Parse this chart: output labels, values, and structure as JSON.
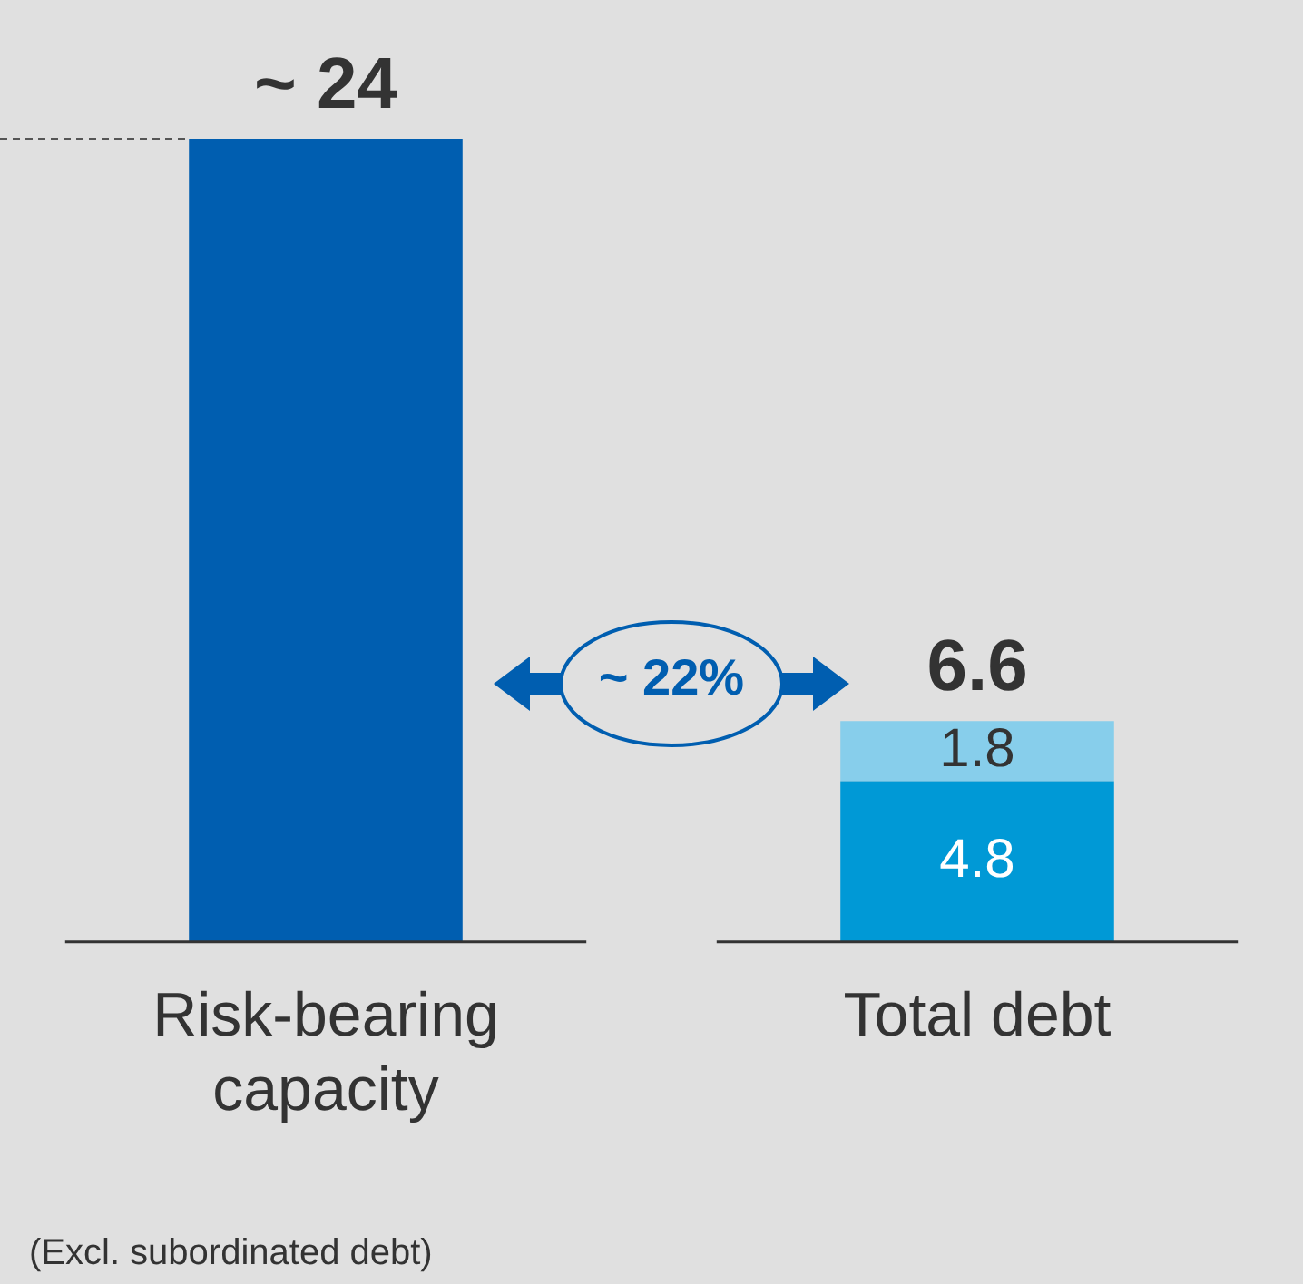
{
  "chart_data": {
    "type": "bar",
    "stacked": true,
    "categories": [
      "Risk-bearing capacity",
      "Total debt"
    ],
    "series": [
      {
        "color": "#005eb0",
        "values": [
          24,
          null
        ],
        "value_labels": [
          null,
          null
        ]
      },
      {
        "color": "#0099d6",
        "values": [
          null,
          4.8
        ],
        "value_labels": [
          null,
          "4.8"
        ]
      },
      {
        "color": "#87ceeb",
        "values": [
          null,
          1.8
        ],
        "value_labels": [
          null,
          "1.8"
        ]
      }
    ],
    "totals": [
      "~ 24",
      "6.6"
    ],
    "ref_lines": [
      {
        "axis": "y",
        "value": 24,
        "line_style": "dashed",
        "color": "#555555"
      }
    ],
    "annotations": [
      "~ 22%",
      "(Excl. subordinated debt)"
    ],
    "legend": false,
    "grid": false
  }
}
